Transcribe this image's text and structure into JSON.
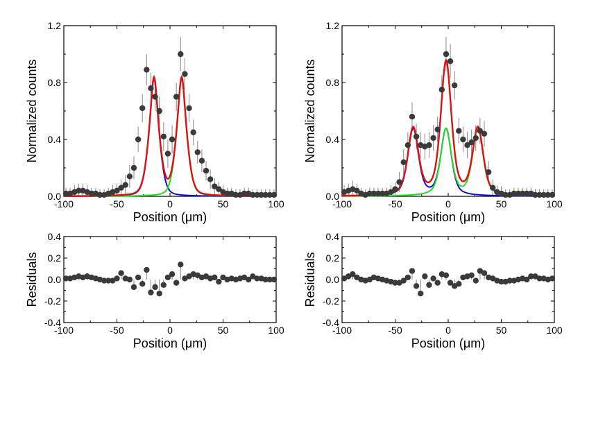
{
  "colors": {
    "data_points": "#3a3a3a",
    "error_bars": "#888888",
    "blue_fit": "#1010d0",
    "green_fit": "#22dd22",
    "red_fit": "#dd1111"
  },
  "chart_data": [
    {
      "type": "scatter",
      "panel": "top-left",
      "xlabel": "Position (μm)",
      "ylabel": "Normalized counts",
      "xlim": [
        -100,
        100
      ],
      "ylim": [
        0,
        1.2
      ],
      "xticks": [
        "-100",
        "-50",
        "0",
        "50",
        "100"
      ],
      "yticks": [
        "0.0",
        "0.4",
        "0.8",
        "1.2"
      ],
      "points": {
        "x": [
          -98,
          -94,
          -90,
          -86,
          -82,
          -78,
          -74,
          -70,
          -66,
          -62,
          -58,
          -54,
          -50,
          -46,
          -42,
          -38,
          -34,
          -30,
          -26,
          -22,
          -18,
          -14,
          -10,
          -6,
          -2,
          2,
          6,
          10,
          14,
          18,
          22,
          26,
          30,
          34,
          38,
          42,
          46,
          50,
          54,
          58,
          62,
          66,
          70,
          74,
          78,
          82,
          86,
          90,
          94,
          98
        ],
        "y": [
          0.02,
          0.02,
          0.03,
          0.04,
          0.04,
          0.03,
          0.02,
          0.02,
          0.01,
          0.01,
          0.02,
          0.03,
          0.04,
          0.06,
          0.08,
          0.14,
          0.2,
          0.4,
          0.62,
          0.89,
          0.76,
          0.7,
          0.6,
          0.42,
          0.3,
          0.4,
          0.7,
          1.0,
          0.86,
          0.62,
          0.45,
          0.31,
          0.25,
          0.18,
          0.12,
          0.07,
          0.05,
          0.03,
          0.02,
          0.02,
          0.01,
          0.01,
          0.02,
          0.02,
          0.01,
          0.01,
          0.01,
          0.01,
          0.01,
          0.01
        ],
        "err": [
          0.04,
          0.04,
          0.05,
          0.05,
          0.05,
          0.05,
          0.04,
          0.04,
          0.04,
          0.04,
          0.04,
          0.05,
          0.05,
          0.06,
          0.07,
          0.08,
          0.08,
          0.09,
          0.1,
          0.11,
          0.11,
          0.1,
          0.1,
          0.1,
          0.1,
          0.1,
          0.1,
          0.12,
          0.11,
          0.1,
          0.09,
          0.08,
          0.08,
          0.07,
          0.07,
          0.06,
          0.05,
          0.05,
          0.04,
          0.04,
          0.04,
          0.04,
          0.04,
          0.04,
          0.04,
          0.04,
          0.04,
          0.04,
          0.04,
          0.04
        ]
      },
      "fits": [
        {
          "name": "blue",
          "center": -15,
          "amplitude": 0.83,
          "sigma": 5.5,
          "gamma": 4.0
        },
        {
          "name": "green",
          "center": 11,
          "amplitude": 0.83,
          "sigma": 5.5,
          "gamma": 4.0
        },
        {
          "name": "red",
          "role": "sum"
        }
      ]
    },
    {
      "type": "scatter",
      "panel": "top-right",
      "xlabel": "Position (μm)",
      "ylabel": "Normalized counts",
      "xlim": [
        -100,
        100
      ],
      "ylim": [
        0,
        1.2
      ],
      "xticks": [
        "-100",
        "-50",
        "0",
        "50",
        "100"
      ],
      "yticks": [
        "0.0",
        "0.4",
        "0.8",
        "1.2"
      ],
      "points": {
        "x": [
          -98,
          -94,
          -90,
          -86,
          -82,
          -78,
          -74,
          -70,
          -66,
          -62,
          -58,
          -54,
          -50,
          -46,
          -42,
          -38,
          -34,
          -30,
          -26,
          -22,
          -18,
          -14,
          -10,
          -6,
          -2,
          2,
          6,
          10,
          14,
          18,
          22,
          26,
          30,
          34,
          38,
          42,
          46,
          50,
          54,
          58,
          62,
          66,
          70,
          74,
          78,
          82,
          86,
          90,
          94,
          98
        ],
        "y": [
          0.03,
          0.04,
          0.05,
          0.04,
          0.02,
          0.01,
          0.02,
          0.02,
          0.02,
          0.02,
          0.02,
          0.03,
          0.05,
          0.1,
          0.24,
          0.36,
          0.56,
          0.42,
          0.36,
          0.35,
          0.36,
          0.41,
          0.47,
          0.75,
          1.0,
          0.95,
          0.78,
          0.46,
          0.4,
          0.36,
          0.38,
          0.41,
          0.46,
          0.44,
          0.17,
          0.06,
          0.03,
          0.02,
          0.01,
          0.01,
          0.02,
          0.02,
          0.02,
          0.02,
          0.02,
          0.01,
          0.01,
          0.01,
          0.01,
          0.01
        ],
        "err": [
          0.05,
          0.05,
          0.06,
          0.05,
          0.04,
          0.04,
          0.04,
          0.04,
          0.04,
          0.04,
          0.04,
          0.05,
          0.05,
          0.07,
          0.09,
          0.09,
          0.1,
          0.09,
          0.09,
          0.09,
          0.09,
          0.09,
          0.09,
          0.1,
          0.12,
          0.12,
          0.1,
          0.09,
          0.09,
          0.09,
          0.09,
          0.09,
          0.09,
          0.09,
          0.08,
          0.06,
          0.05,
          0.05,
          0.04,
          0.04,
          0.04,
          0.04,
          0.04,
          0.04,
          0.04,
          0.04,
          0.04,
          0.04,
          0.04,
          0.04
        ]
      },
      "fits": [
        {
          "name": "blue",
          "peaks": [
            {
              "center": -33,
              "amplitude": 0.47
            },
            {
              "center": -2,
              "amplitude": 0.47
            }
          ],
          "sigma": 5.0,
          "gamma": 6.0
        },
        {
          "name": "green",
          "peaks": [
            {
              "center": -2,
              "amplitude": 0.47
            },
            {
              "center": 28,
              "amplitude": 0.47
            }
          ],
          "sigma": 5.0,
          "gamma": 6.0
        },
        {
          "name": "red",
          "role": "sum"
        }
      ]
    },
    {
      "type": "scatter",
      "panel": "bottom-left",
      "xlabel": "Position (μm)",
      "ylabel": "Residuals",
      "xlim": [
        -100,
        100
      ],
      "ylim": [
        -0.4,
        0.4
      ],
      "xticks": [
        "-100",
        "-50",
        "0",
        "50",
        "100"
      ],
      "yticks": [
        "-0.4",
        "-0.2",
        "0.0",
        "0.2",
        "0.4"
      ],
      "points": {
        "x": [
          -98,
          -94,
          -90,
          -86,
          -82,
          -78,
          -74,
          -70,
          -66,
          -62,
          -58,
          -54,
          -50,
          -46,
          -42,
          -38,
          -34,
          -30,
          -26,
          -22,
          -18,
          -14,
          -10,
          -6,
          -2,
          2,
          6,
          10,
          14,
          18,
          22,
          26,
          30,
          34,
          38,
          42,
          46,
          50,
          54,
          58,
          62,
          66,
          70,
          74,
          78,
          82,
          86,
          90,
          94,
          98
        ],
        "y": [
          0.01,
          0.01,
          0.02,
          0.03,
          0.02,
          0.03,
          0.02,
          0.01,
          0.0,
          -0.01,
          -0.01,
          -0.01,
          0.01,
          0.06,
          0.01,
          0.0,
          -0.07,
          0.02,
          -0.04,
          0.09,
          -0.12,
          -0.07,
          -0.13,
          -0.05,
          0.02,
          0.05,
          -0.03,
          0.14,
          0.01,
          0.03,
          0.05,
          0.04,
          0.02,
          0.03,
          0.01,
          0.02,
          -0.02,
          0.02,
          0.0,
          0.01,
          0.0,
          0.01,
          0.02,
          0.0,
          0.03,
          0.01,
          0.01,
          0.0,
          0.0,
          0.0
        ]
      }
    },
    {
      "type": "scatter",
      "panel": "bottom-right",
      "xlabel": "Position (μm)",
      "ylabel": "Residuals",
      "xlim": [
        -100,
        100
      ],
      "ylim": [
        -0.4,
        0.4
      ],
      "xticks": [
        "-100",
        "-50",
        "0",
        "50",
        "100"
      ],
      "yticks": [
        "-0.4",
        "-0.2",
        "0.0",
        "0.2",
        "0.4"
      ],
      "points": {
        "x": [
          -98,
          -94,
          -90,
          -86,
          -82,
          -78,
          -74,
          -70,
          -66,
          -62,
          -58,
          -54,
          -50,
          -46,
          -42,
          -38,
          -34,
          -30,
          -26,
          -22,
          -18,
          -14,
          -10,
          -6,
          -2,
          2,
          6,
          10,
          14,
          18,
          22,
          26,
          30,
          34,
          38,
          42,
          46,
          50,
          54,
          58,
          62,
          66,
          70,
          74,
          78,
          82,
          86,
          90,
          94,
          98
        ],
        "y": [
          0.01,
          0.03,
          0.05,
          0.02,
          0.0,
          -0.01,
          0.0,
          0.02,
          0.01,
          0.0,
          -0.01,
          -0.02,
          -0.03,
          -0.03,
          -0.01,
          0.02,
          0.08,
          -0.06,
          -0.13,
          0.03,
          -0.05,
          0.01,
          -0.03,
          0.05,
          0.04,
          -0.03,
          -0.06,
          -0.04,
          0.02,
          0.03,
          0.04,
          -0.01,
          0.08,
          0.06,
          0.02,
          0.01,
          -0.01,
          -0.02,
          -0.02,
          -0.01,
          -0.01,
          0.0,
          0.01,
          0.0,
          0.03,
          0.03,
          0.01,
          0.01,
          0.0,
          0.01
        ]
      }
    }
  ]
}
